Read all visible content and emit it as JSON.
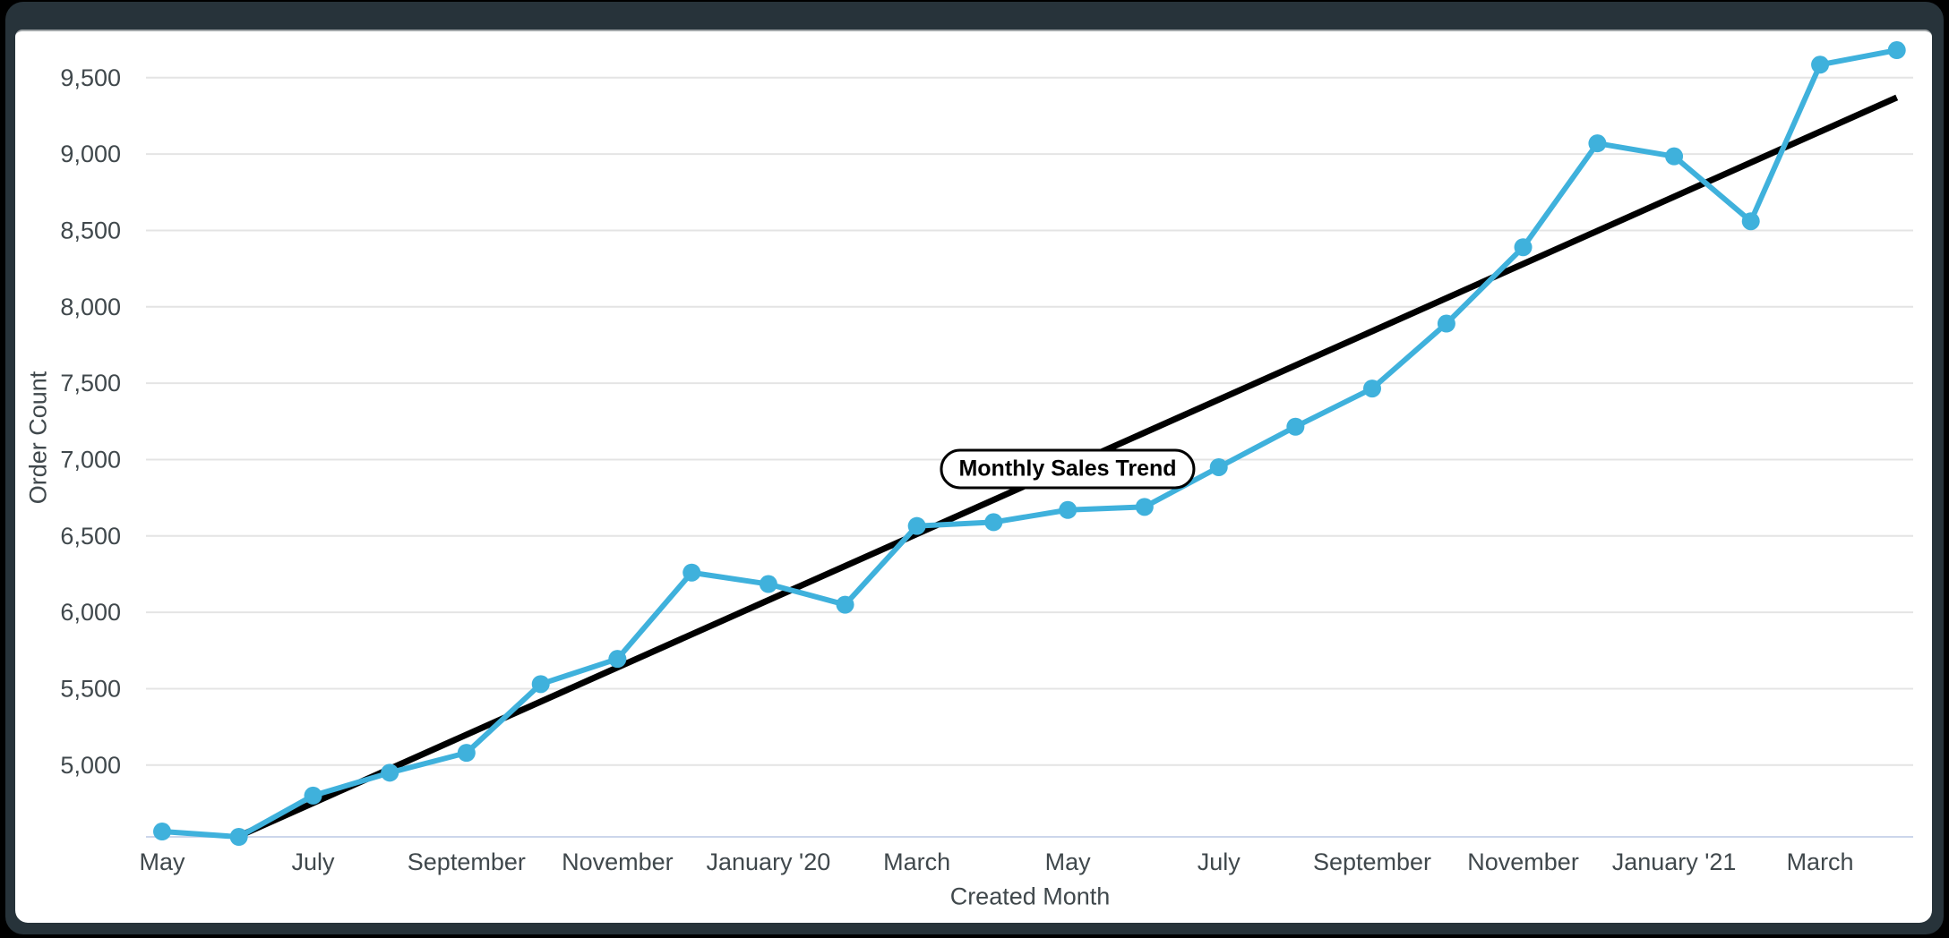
{
  "chart_data": {
    "type": "line",
    "title": "Monthly Sales Trend",
    "xlabel": "Created Month",
    "ylabel": "Order Count",
    "x": [
      "2019-05",
      "2019-06",
      "2019-07",
      "2019-08",
      "2019-09",
      "2019-10",
      "2019-11",
      "2019-12",
      "2020-01",
      "2020-02",
      "2020-03",
      "2020-04",
      "2020-05",
      "2020-06",
      "2020-07",
      "2020-08",
      "2020-09",
      "2020-10",
      "2020-11",
      "2020-12",
      "2021-01",
      "2021-02",
      "2021-03",
      "2021-04"
    ],
    "series": [
      {
        "name": "Order Count",
        "color": "#3fb1dc",
        "values": [
          4565,
          4530,
          4800,
          4950,
          5080,
          5530,
          5695,
          6260,
          6185,
          6050,
          6565,
          6590,
          6670,
          6690,
          6950,
          7215,
          7465,
          7890,
          8390,
          9070,
          8985,
          8560,
          9585,
          9680
        ]
      },
      {
        "name": "Trend",
        "color": "#000000",
        "start": {
          "month_index": 1,
          "value": 4535
        },
        "end": {
          "month_index": 23,
          "value": 9370
        }
      }
    ],
    "x_ticks": [
      {
        "label": "May",
        "month_index": 0
      },
      {
        "label": "July",
        "month_index": 2
      },
      {
        "label": "September",
        "month_index": 4
      },
      {
        "label": "November",
        "month_index": 6
      },
      {
        "label": "January '20",
        "month_index": 8
      },
      {
        "label": "March",
        "month_index": 10
      },
      {
        "label": "May",
        "month_index": 12
      },
      {
        "label": "July",
        "month_index": 14
      },
      {
        "label": "September",
        "month_index": 16
      },
      {
        "label": "November",
        "month_index": 18
      },
      {
        "label": "January '21",
        "month_index": 20
      },
      {
        "label": "March",
        "month_index": 22
      }
    ],
    "y_ticks": [
      {
        "label": "5,000",
        "value": 5000
      },
      {
        "label": "5,500",
        "value": 5500
      },
      {
        "label": "6,000",
        "value": 6000
      },
      {
        "label": "6,500",
        "value": 6500
      },
      {
        "label": "7,000",
        "value": 7000
      },
      {
        "label": "7,500",
        "value": 7500
      },
      {
        "label": "8,000",
        "value": 8000
      },
      {
        "label": "8,500",
        "value": 8500
      },
      {
        "label": "9,000",
        "value": 9000
      },
      {
        "label": "9,500",
        "value": 9500
      }
    ],
    "y_range": [
      4530,
      9680
    ],
    "grid": true,
    "legend": "none",
    "colors": {
      "grid": "#e4e4e4",
      "axis_line": "#ccd6eb",
      "text": "#40484c"
    }
  }
}
